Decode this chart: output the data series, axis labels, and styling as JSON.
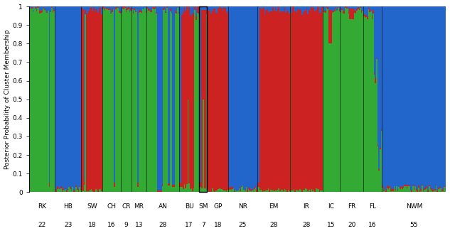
{
  "populations": [
    {
      "name": "RK",
      "n": 22
    },
    {
      "name": "HB",
      "n": 23
    },
    {
      "name": "SW",
      "n": 18
    },
    {
      "name": "CH",
      "n": 16
    },
    {
      "name": "CR",
      "n": 9
    },
    {
      "name": "MR",
      "n": 13
    },
    {
      "name": "AN",
      "n": 28
    },
    {
      "name": "BU",
      "n": 17
    },
    {
      "name": "SM",
      "n": 7
    },
    {
      "name": "GP",
      "n": 18
    },
    {
      "name": "NR",
      "n": 25
    },
    {
      "name": "EM",
      "n": 28
    },
    {
      "name": "IR",
      "n": 28
    },
    {
      "name": "IC",
      "n": 15
    },
    {
      "name": "FR",
      "n": 20
    },
    {
      "name": "FL",
      "n": 16
    },
    {
      "name": "NWM",
      "n": 55
    }
  ],
  "colors": {
    "red": "#cc2222",
    "green": "#33aa33",
    "blue": "#2266cc"
  },
  "ylabel": "Posterior Probability of Cluster Membership",
  "tick_fontsize": 6.5,
  "ylabel_fontsize": 6.5,
  "label_fontsize": 6.5
}
